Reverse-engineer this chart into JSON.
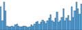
{
  "values": [
    55,
    22,
    65,
    45,
    10,
    8,
    8,
    10,
    8,
    12,
    14,
    10,
    8,
    8,
    10,
    10,
    8,
    6,
    8,
    12,
    10,
    14,
    18,
    20,
    14,
    18,
    24,
    20,
    16,
    22,
    28,
    36,
    22,
    18,
    28,
    42,
    18,
    22,
    30,
    50,
    22,
    28,
    34,
    22,
    55,
    30,
    45,
    65,
    50,
    38,
    60
  ],
  "bar_color": "#5aabdf",
  "edge_color": "#1a1a2e",
  "background_color": "#ffffff",
  "ylim": [
    0,
    70
  ],
  "xlim": [
    -0.5,
    50.5
  ]
}
